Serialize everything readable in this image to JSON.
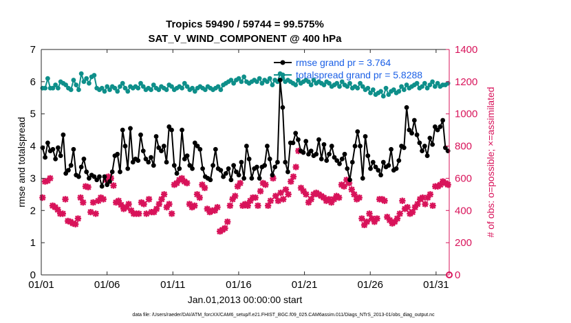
{
  "chart_data": {
    "type": "line",
    "title": "Tropics 59490 / 59744 = 99.575%",
    "subtitle": "SAT_V_WIND_COMPONENT @ 400 hPa",
    "xlabel": "Jan.01,2013 00:00:00 start",
    "ylabel_left": "rmse and totalspread",
    "ylabel_right": "# of obs: o=possible; ×=assimilated",
    "footnote": "data file: /Users/raeder/DAI/ATM_forcXX/CAM6_setup/f.e21.FHIST_BGC.f09_025.CAM6assim.011/Diags_NTrS_2013-01/obs_diag_output.nc",
    "x_ticks": [
      "01/01",
      "01/06",
      "01/11",
      "01/16",
      "01/21",
      "01/26",
      "01/31"
    ],
    "x_tick_day": [
      1,
      6,
      11,
      16,
      21,
      26,
      31
    ],
    "xlim_day": [
      1,
      32
    ],
    "ylim_left": [
      0,
      7
    ],
    "y_ticks_left": [
      "0",
      "1",
      "2",
      "3",
      "4",
      "5",
      "6",
      "7"
    ],
    "ylim_right": [
      0,
      1400
    ],
    "y_ticks_right": [
      "0",
      "200",
      "400",
      "600",
      "800",
      "1000",
      "1200",
      "1400"
    ],
    "legend": [
      "rmse grand pr = 3.764",
      "totalspread grand pr = 5.8288"
    ],
    "colors": {
      "rmse": "#000000",
      "spread": "#0e8f8a",
      "obs": "#d8135a",
      "right_axis": "#d8135a",
      "legend_text": "#1a5fe6"
    },
    "series": [
      {
        "name": "rmse",
        "values": [
          3.95,
          3.65,
          4.1,
          3.85,
          3.9,
          3.6,
          3.95,
          3.7,
          4.35,
          3.15,
          3.25,
          3.4,
          3.9,
          3.1,
          3.05,
          3.35,
          3.6,
          3.2,
          3.0,
          3.1,
          3.05,
          2.95,
          3.05,
          2.75,
          3.05,
          2.8,
          2.9,
          3.2,
          3.7,
          3.75,
          3.2,
          4.5,
          4.0,
          3.3,
          4.55,
          3.5,
          3.6,
          3.55,
          4.35,
          3.85,
          3.6,
          3.5,
          3.65,
          3.4,
          4.3,
          3.95,
          3.85,
          4.0,
          3.5,
          4.6,
          4.5,
          3.4,
          3.15,
          3.3,
          4.5,
          3.6,
          3.7,
          3.4,
          3.3,
          4.1,
          4.0,
          3.9,
          3.3,
          3.05,
          3.0,
          2.95,
          3.4,
          3.9,
          3.3,
          3.25,
          3.05,
          3.15,
          3.3,
          2.95,
          3.4,
          3.2,
          3.1,
          3.5,
          3.0,
          4.0,
          3.6,
          3.0,
          3.3,
          3.35,
          3.0,
          3.35,
          3.4,
          4.0,
          3.6,
          3.1,
          3.35,
          3.5,
          6.05,
          5.2,
          3.5,
          3.2,
          4.1,
          4.1,
          4.4,
          4.2,
          3.85,
          3.8,
          4.15,
          3.75,
          3.85,
          3.7,
          3.75,
          4.2,
          3.6,
          4.05,
          3.55,
          3.75,
          4.0,
          3.65,
          3.55,
          3.45,
          3.6,
          3.75,
          3.3,
          2.95,
          3.5,
          4.0,
          4.45,
          4.0,
          3.0,
          4.3,
          3.7,
          3.3,
          3.5,
          3.35,
          3.25,
          3.1,
          3.5,
          3.35,
          3.4,
          3.9,
          3.25,
          3.3,
          3.55,
          4.0,
          3.95,
          5.2,
          4.5,
          4.4,
          4.8,
          4.35,
          4.1,
          3.85,
          4.0,
          3.7,
          4.25,
          4.05,
          4.6,
          4.5,
          4.6,
          4.8,
          3.95,
          3.85
        ]
      },
      {
        "name": "totalspread",
        "values": [
          5.8,
          5.8,
          6.1,
          5.8,
          5.8,
          5.9,
          5.8,
          6.0,
          5.95,
          5.9,
          5.8,
          5.75,
          6.05,
          5.9,
          5.75,
          6.25,
          6.0,
          6.1,
          5.95,
          6.15,
          6.2,
          5.8,
          5.75,
          5.8,
          5.7,
          5.85,
          5.75,
          5.85,
          5.8,
          5.7,
          5.85,
          5.95,
          5.8,
          5.7,
          5.85,
          5.8,
          5.85,
          5.8,
          5.95,
          5.85,
          5.75,
          5.8,
          5.75,
          5.9,
          5.8,
          5.75,
          5.85,
          5.8,
          5.75,
          5.9,
          5.85,
          5.75,
          5.8,
          5.85,
          5.8,
          5.95,
          5.85,
          5.75,
          5.8,
          5.7,
          5.8,
          5.85,
          5.8,
          5.75,
          5.85,
          5.8,
          5.75,
          5.8,
          5.85,
          5.75,
          5.9,
          5.95,
          6.0,
          6.05,
          5.95,
          6.05,
          6.1,
          6.0,
          6.15,
          6.0,
          5.95,
          6.0,
          6.05,
          6.0,
          6.1,
          5.95,
          6.05,
          6.0,
          6.1,
          5.9,
          6.05,
          6.0,
          6.25,
          6.1,
          6.0,
          6.05,
          6.0,
          5.95,
          5.9,
          6.05,
          5.95,
          6.0,
          6.05,
          6.0,
          5.9,
          6.05,
          5.95,
          6.0,
          5.95,
          5.9,
          6.0,
          5.95,
          5.85,
          5.9,
          5.95,
          5.85,
          6.0,
          5.9,
          5.85,
          5.95,
          5.8,
          5.85,
          5.8,
          5.95,
          5.85,
          5.75,
          5.8,
          5.65,
          5.75,
          5.6,
          5.65,
          5.7,
          5.55,
          5.8,
          5.6,
          5.7,
          5.75,
          5.65,
          5.7,
          5.85,
          5.75,
          5.9,
          5.8,
          5.85,
          5.9,
          5.95,
          5.8,
          5.85,
          5.95,
          5.8,
          5.9,
          6.0,
          5.85,
          5.95,
          5.85,
          5.9,
          5.9,
          5.95
        ]
      },
      {
        "name": "obs_assimilated",
        "values": [
          480,
          580,
          585,
          600,
          430,
          420,
          405,
          380,
          380,
          470,
          335,
          330,
          320,
          315,
          350,
          480,
          450,
          550,
          545,
          390,
          450,
          380,
          460,
          480,
          470,
          590,
          610,
          600,
          555,
          450,
          460,
          435,
          410,
          420,
          440,
          400,
          380,
          380,
          380,
          450,
          440,
          380,
          470,
          390,
          390,
          410,
          440,
          470,
          500,
          420,
          440,
          380,
          560,
          570,
          590,
          600,
          580,
          570,
          440,
          420,
          430,
          500,
          480,
          560,
          540,
          410,
          390,
          400,
          400,
          420,
          270,
          280,
          290,
          330,
          430,
          470,
          490,
          550,
          570,
          430,
          440,
          430,
          460,
          480,
          480,
          430,
          520,
          570,
          560,
          430,
          460,
          600,
          490,
          460,
          510,
          470,
          530,
          500,
          580,
          610,
          670,
          770,
          540,
          520,
          500,
          450,
          470,
          500,
          510,
          500,
          490,
          480,
          460,
          470,
          450,
          470,
          490,
          480,
          560,
          550,
          590,
          570,
          530,
          500,
          470,
          480,
          350,
          310,
          330,
          380,
          350,
          330,
          350,
          470,
          470,
          460,
          360,
          340,
          320,
          330,
          350,
          380,
          460,
          410,
          420,
          380,
          390,
          420,
          440,
          470,
          480,
          440,
          480,
          500,
          430,
          550,
          550,
          560,
          580,
          570,
          560
        ]
      }
    ],
    "extra_marker": {
      "day": 32,
      "value": 0,
      "label": "possible"
    }
  }
}
